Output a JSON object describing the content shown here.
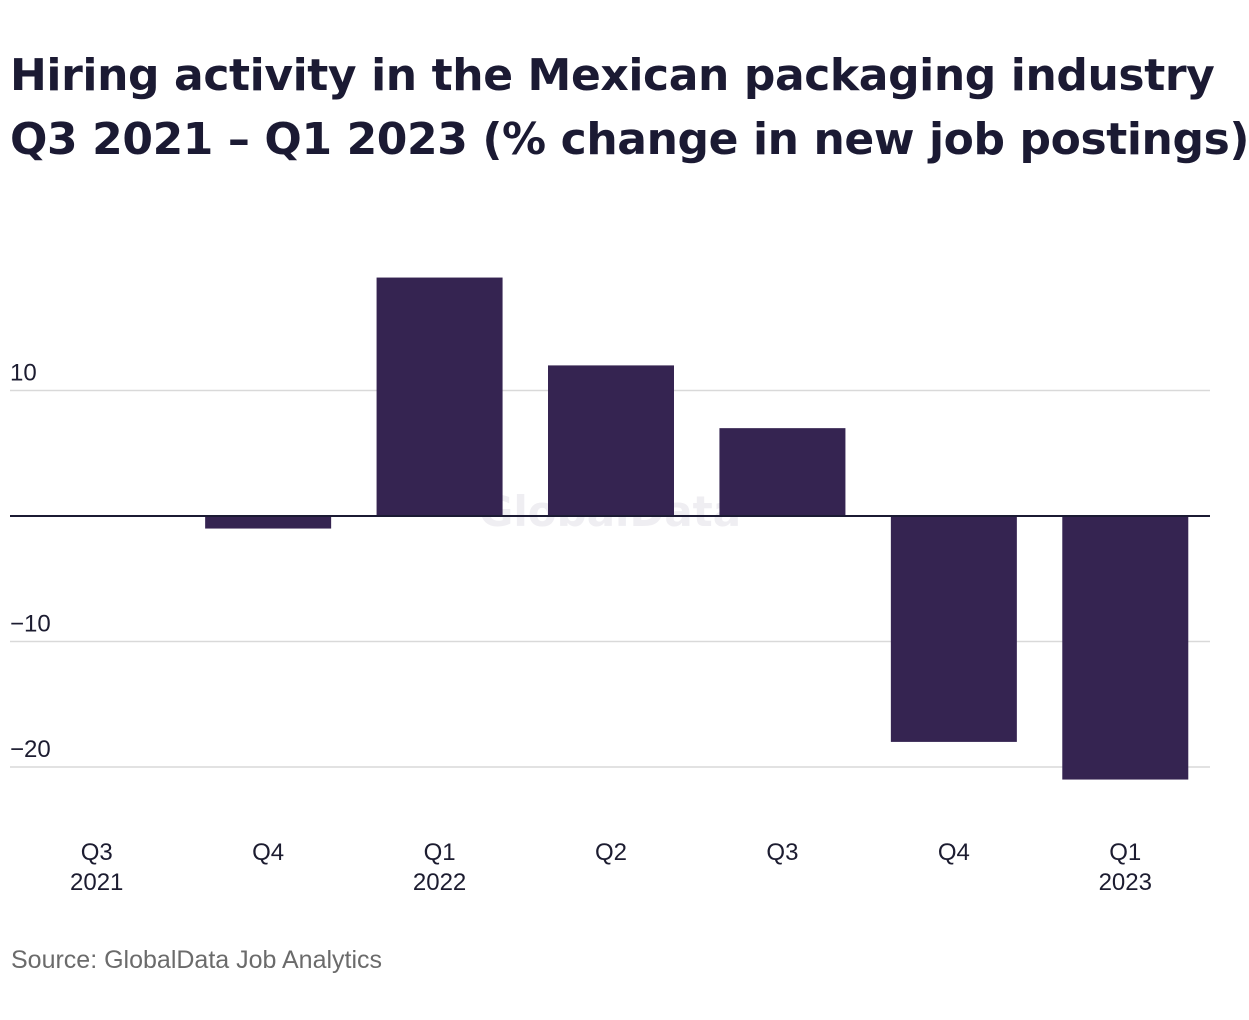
{
  "title": {
    "line1": "Hiring activity in the Mexican packaging industry",
    "line2": "Q3 2021 – Q1 2023 (% change in new job postings)"
  },
  "source": "Source: GlobalData Job Analytics",
  "watermark": "GlobalData",
  "colors": {
    "bar": "#352451",
    "grid": "#d9d9d9",
    "zero_line": "#1b1a33",
    "text": "#1c1c30",
    "source_text": "#6b6b6b"
  },
  "chart_data": {
    "type": "bar",
    "categories": [
      {
        "quarter": "Q3",
        "year": "2021"
      },
      {
        "quarter": "Q4",
        "year": ""
      },
      {
        "quarter": "Q1",
        "year": "2022"
      },
      {
        "quarter": "Q2",
        "year": ""
      },
      {
        "quarter": "Q3",
        "year": ""
      },
      {
        "quarter": "Q4",
        "year": ""
      },
      {
        "quarter": "Q1",
        "year": "2023"
      }
    ],
    "values": [
      0,
      -1,
      19,
      12,
      7,
      -18,
      -21
    ],
    "ylim": [
      -22,
      22
    ],
    "yticks": [
      10,
      -10,
      -20
    ],
    "ytick_labels": [
      "10",
      "−10",
      "−20"
    ],
    "grid": true,
    "legend": "none"
  }
}
